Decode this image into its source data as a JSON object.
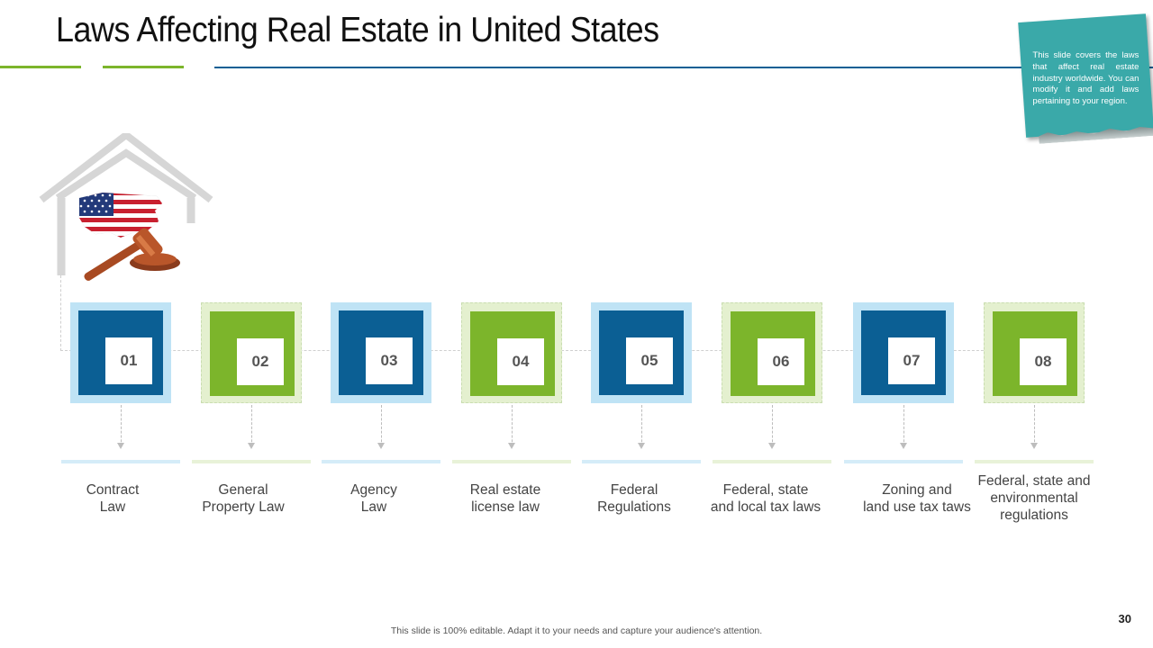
{
  "title": "Laws Affecting Real Estate in United States",
  "note": "This slide covers the laws that affect real estate industry worldwide. You can modify it and add laws pertaining to your region.",
  "colors": {
    "blue": "#0b5f94",
    "green": "#7cb52b",
    "note": "#3aa9a9"
  },
  "items": [
    {
      "num": "01",
      "label": "Contract\nLaw",
      "color": "blue"
    },
    {
      "num": "02",
      "label": "General\nProperty Law",
      "color": "green"
    },
    {
      "num": "03",
      "label": "Agency\nLaw",
      "color": "blue"
    },
    {
      "num": "04",
      "label": "Real estate\nlicense law",
      "color": "green"
    },
    {
      "num": "05",
      "label": "Federal\nRegulations",
      "color": "blue"
    },
    {
      "num": "06",
      "label": "Federal, state\nand local tax laws",
      "color": "green"
    },
    {
      "num": "07",
      "label": "Zoning and\nland use tax taws",
      "color": "blue"
    },
    {
      "num": "08",
      "label": "Federal, state and\nenvironmental\nregulations",
      "color": "green"
    }
  ],
  "page_number": "30",
  "footer": "This slide is 100% editable. Adapt it to your needs and capture your audience's attention."
}
